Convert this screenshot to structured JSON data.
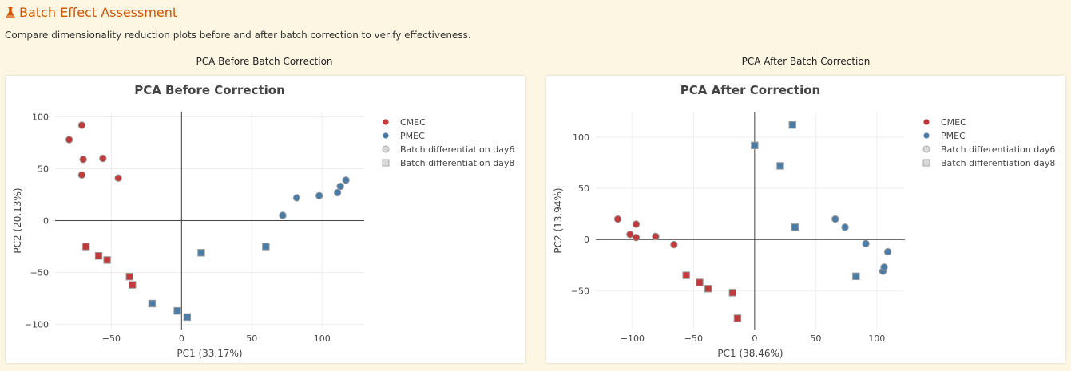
{
  "header": {
    "icon": "flask-icon",
    "title": "Batch Effect Assessment",
    "subtitle": "Compare dimensionality reduction plots before and after batch correction to verify effectiveness."
  },
  "panels": [
    {
      "label": "PCA Before Batch Correction"
    },
    {
      "label": "PCA After Batch Correction"
    }
  ],
  "colors": {
    "CMEC": "#c0393b",
    "PMEC": "#4a7ca8",
    "accent": "#d35400"
  },
  "chart_data": [
    {
      "type": "scatter",
      "title": "PCA Before Correction",
      "xlabel": "PC1 (33.17%)",
      "ylabel": "PC2 (20.13%)",
      "xlim": [
        -90,
        130
      ],
      "ylim": [
        -105,
        105
      ],
      "xticks": [
        -50,
        0,
        50,
        100
      ],
      "yticks": [
        -100,
        -50,
        0,
        50,
        100
      ],
      "xtick_labels": [
        "−50",
        "0",
        "50",
        "100"
      ],
      "ytick_labels": [
        "−100",
        "−50",
        "0",
        "50",
        "100"
      ],
      "grid": true,
      "legend": {
        "placement": "right",
        "entries": [
          "CMEC",
          "PMEC",
          "Batch differentiation day6",
          "Batch differentiation day8"
        ]
      },
      "series": [
        {
          "name": "CMEC",
          "batch": "day6",
          "x": [
            -80,
            -71,
            -70,
            -56,
            -71,
            -45
          ],
          "y": [
            78,
            92,
            59,
            60,
            44,
            41
          ]
        },
        {
          "name": "CMEC",
          "batch": "day8",
          "x": [
            -68,
            -59,
            -53,
            -37,
            -35
          ],
          "y": [
            -25,
            -34,
            -38,
            -54,
            -62
          ]
        },
        {
          "name": "PMEC",
          "batch": "day6",
          "x": [
            72,
            82,
            98,
            111,
            113,
            117
          ],
          "y": [
            5,
            22,
            24,
            27,
            33,
            39
          ]
        },
        {
          "name": "PMEC",
          "batch": "day8",
          "x": [
            60,
            14,
            -21,
            -3,
            4
          ],
          "y": [
            -25,
            -31,
            -80,
            -87,
            -93
          ]
        }
      ]
    },
    {
      "type": "scatter",
      "title": "PCA After Correction",
      "xlabel": "PC1 (38.46%)",
      "ylabel": "PC2 (13.94%)",
      "xlim": [
        -130,
        123
      ],
      "ylim": [
        -88,
        125
      ],
      "xticks": [
        -100,
        -50,
        0,
        50,
        100
      ],
      "yticks": [
        -50,
        0,
        50,
        100
      ],
      "xtick_labels": [
        "−100",
        "−50",
        "0",
        "50",
        "100"
      ],
      "ytick_labels": [
        "−50",
        "0",
        "50",
        "100"
      ],
      "grid": true,
      "legend": {
        "placement": "right",
        "entries": [
          "CMEC",
          "PMEC",
          "Batch differentiation day6",
          "Batch differentiation day8"
        ]
      },
      "series": [
        {
          "name": "CMEC",
          "batch": "day6",
          "x": [
            -112,
            -97,
            -102,
            -97,
            -81,
            -66
          ],
          "y": [
            20,
            15,
            5,
            2,
            3,
            -5
          ]
        },
        {
          "name": "CMEC",
          "batch": "day8",
          "x": [
            -56,
            -45,
            -38,
            -18,
            -14
          ],
          "y": [
            -35,
            -42,
            -48,
            -52,
            -77
          ]
        },
        {
          "name": "PMEC",
          "batch": "day6",
          "x": [
            66,
            74,
            91,
            105,
            106,
            109
          ],
          "y": [
            20,
            12,
            -4,
            -31,
            -27,
            -12
          ]
        },
        {
          "name": "PMEC",
          "batch": "day8",
          "x": [
            0,
            21,
            31,
            33,
            83
          ],
          "y": [
            92,
            72,
            112,
            12,
            -36
          ]
        }
      ]
    }
  ]
}
